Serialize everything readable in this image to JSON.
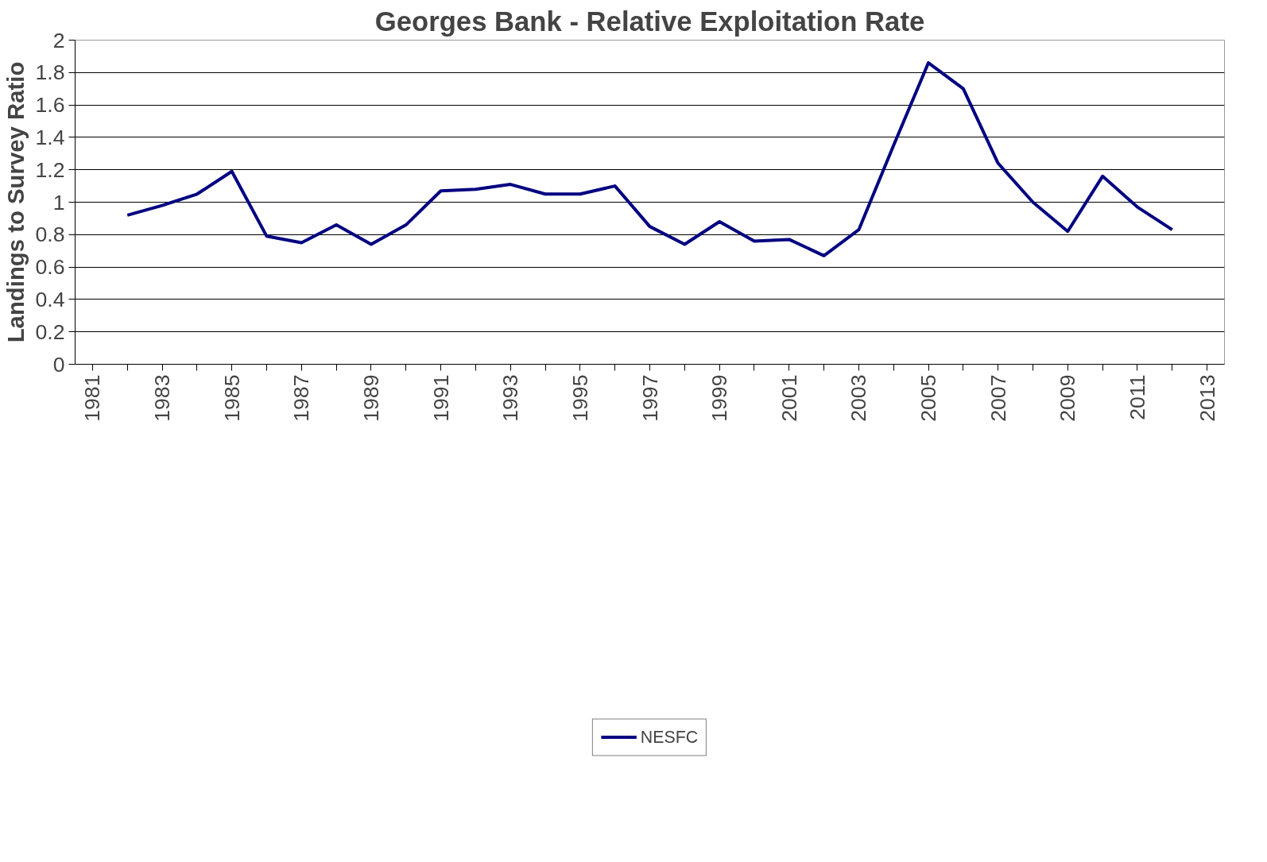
{
  "chart_data": {
    "type": "line",
    "title": "Georges Bank - Relative Exploitation Rate",
    "ylabel": "Landings to Survey Ratio",
    "x": [
      1982,
      1983,
      1984,
      1985,
      1986,
      1987,
      1988,
      1989,
      1990,
      1991,
      1992,
      1993,
      1994,
      1995,
      1996,
      1997,
      1998,
      1999,
      2000,
      2001,
      2002,
      2003,
      2004,
      2005,
      2006,
      2007,
      2008,
      2009,
      2010,
      2011,
      2012
    ],
    "series": [
      {
        "name": "NESFC",
        "color": "#000080",
        "values": [
          0.92,
          0.98,
          1.05,
          1.19,
          0.79,
          0.75,
          0.86,
          0.74,
          0.86,
          1.07,
          1.08,
          1.11,
          1.05,
          1.05,
          1.1,
          0.85,
          0.74,
          0.88,
          0.76,
          0.77,
          0.67,
          0.83,
          1.35,
          1.86,
          1.7,
          1.24,
          1.0,
          0.82,
          1.16,
          0.97,
          0.83
        ]
      }
    ],
    "xlim": [
      1980.5,
      2013.5
    ],
    "xticks": [
      1981,
      {
        "value": 1982,
        "label": null
      },
      1983,
      {
        "value": 1984,
        "label": null
      },
      1985,
      {
        "value": 1986,
        "label": null
      },
      1987,
      {
        "value": 1988,
        "label": null
      },
      1989,
      {
        "value": 1990,
        "label": null
      },
      1991,
      {
        "value": 1992,
        "label": null
      },
      1993,
      {
        "value": 1994,
        "label": null
      },
      1995,
      {
        "value": 1996,
        "label": null
      },
      1997,
      {
        "value": 1998,
        "label": null
      },
      1999,
      {
        "value": 2000,
        "label": null
      },
      2001,
      {
        "value": 2002,
        "label": null
      },
      2003,
      {
        "value": 2004,
        "label": null
      },
      2005,
      {
        "value": 2006,
        "label": null
      },
      2007,
      {
        "value": 2008,
        "label": null
      },
      2009,
      {
        "value": 2010,
        "label": null
      },
      2011,
      {
        "value": 2012,
        "label": null
      },
      2013
    ],
    "ylim": [
      0,
      2
    ],
    "yticks": [
      0,
      0.2,
      0.4,
      0.6,
      0.8,
      1,
      1.2,
      1.4,
      1.6,
      1.8,
      2
    ],
    "grid": "y",
    "legend": "bottom",
    "marker": "none",
    "line_style": "solid"
  }
}
